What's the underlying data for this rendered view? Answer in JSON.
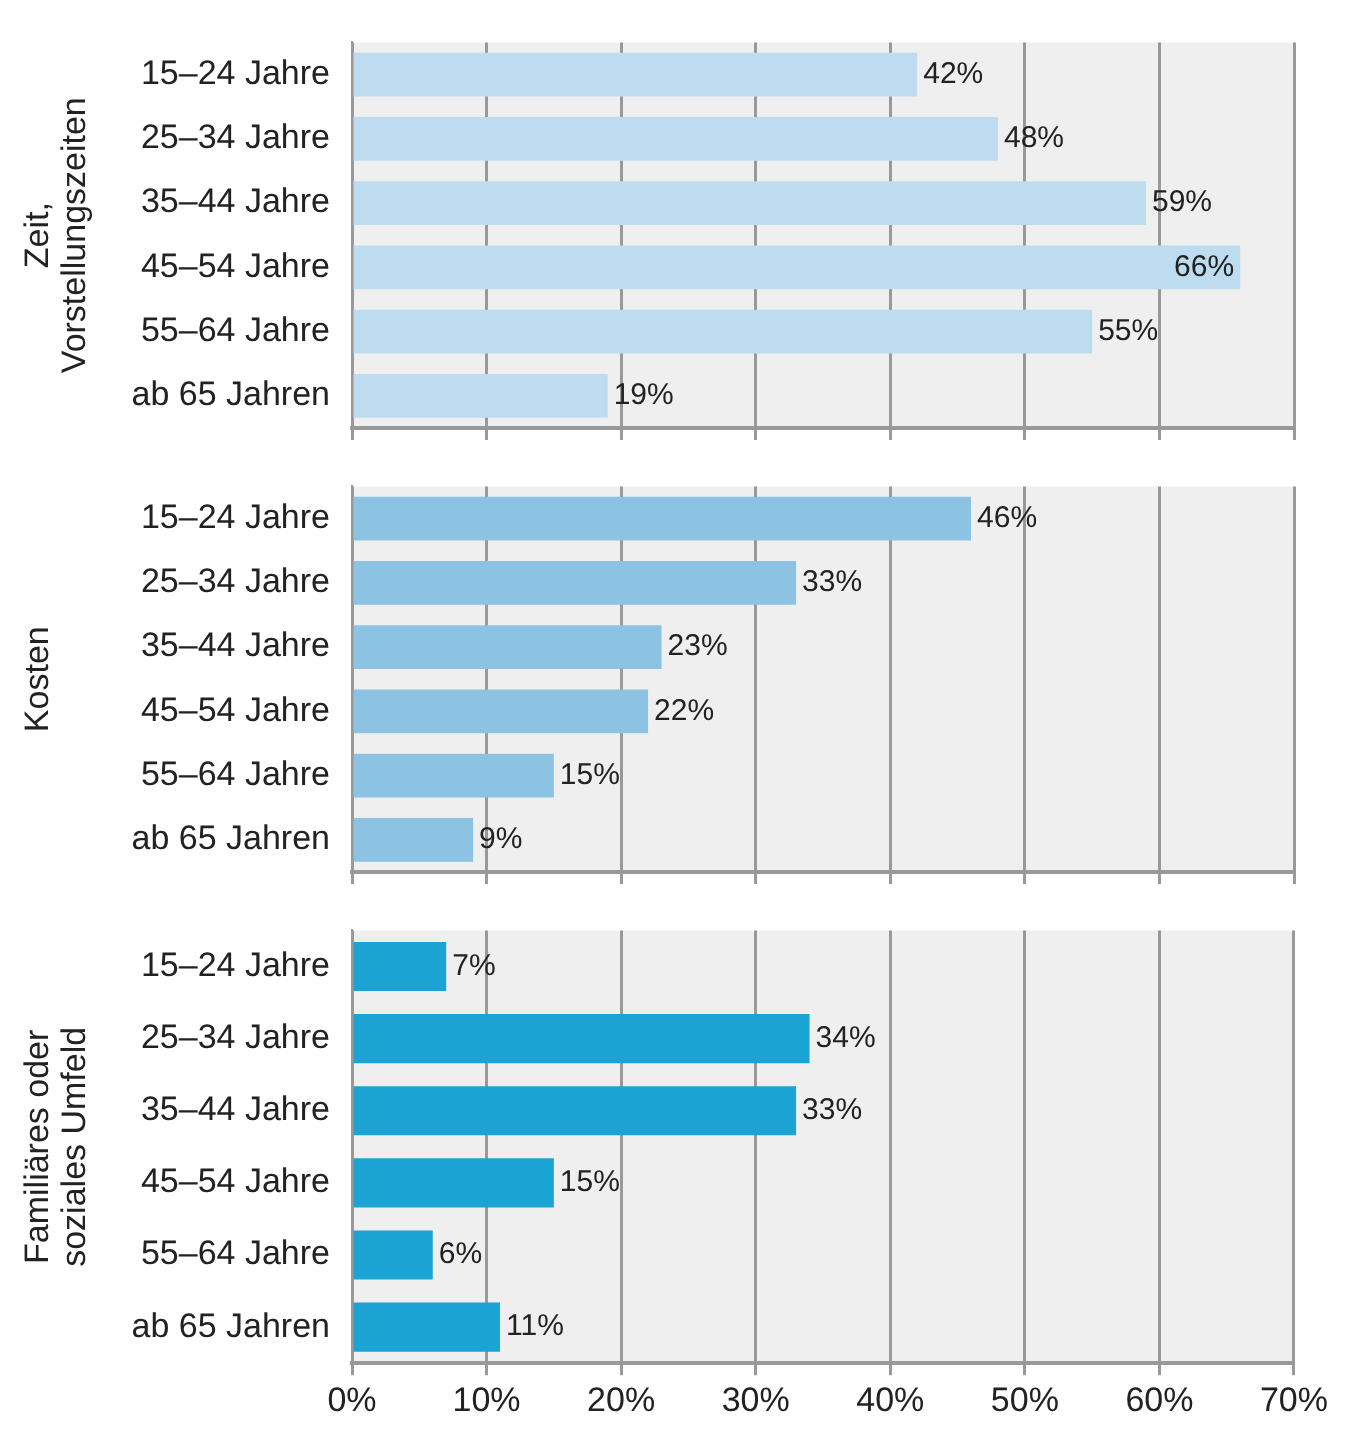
{
  "chart_data": [
    {
      "type": "bar",
      "orientation": "horizontal",
      "ylabel": "Zeit,\nVorstellungszeiten",
      "categories": [
        "15–24 Jahre",
        "25–34 Jahre",
        "35–44 Jahre",
        "45–54 Jahre",
        "55–64 Jahre",
        "ab 65 Jahren"
      ],
      "values": [
        42,
        48,
        59,
        66,
        55,
        19
      ],
      "value_labels": [
        "42%",
        "48%",
        "59%",
        "66%",
        "55%",
        "19%"
      ],
      "color": "#bddcf0",
      "xlim": [
        0,
        70
      ],
      "xticks": [
        {
          "value": 0,
          "label": null
        },
        {
          "value": 10,
          "label": null
        },
        {
          "value": 20,
          "label": null
        },
        {
          "value": 30,
          "label": null
        },
        {
          "value": 40,
          "label": null
        },
        {
          "value": 50,
          "label": null
        },
        {
          "value": 60,
          "label": null
        },
        {
          "value": 70,
          "label": null
        }
      ],
      "grid": "x",
      "tick_labels": "y"
    },
    {
      "type": "bar",
      "orientation": "horizontal",
      "ylabel": "Kosten",
      "categories": [
        "15–24 Jahre",
        "25–34 Jahre",
        "35–44 Jahre",
        "45–54 Jahre",
        "55–64 Jahre",
        "ab 65 Jahren"
      ],
      "values": [
        46,
        33,
        23,
        22,
        15,
        9
      ],
      "value_labels": [
        "46%",
        "33%",
        "23%",
        "22%",
        "15%",
        "9%"
      ],
      "color": "#8cc3e3",
      "xlim": [
        0,
        70
      ],
      "xticks": [
        {
          "value": 0,
          "label": null
        },
        {
          "value": 10,
          "label": null
        },
        {
          "value": 20,
          "label": null
        },
        {
          "value": 30,
          "label": null
        },
        {
          "value": 40,
          "label": null
        },
        {
          "value": 50,
          "label": null
        },
        {
          "value": 60,
          "label": null
        },
        {
          "value": 70,
          "label": null
        }
      ],
      "grid": "x",
      "tick_labels": "y"
    },
    {
      "type": "bar",
      "orientation": "horizontal",
      "ylabel": "Familiäres oder\nsoziales Umfeld",
      "categories": [
        "15–24 Jahre",
        "25–34 Jahre",
        "35–44 Jahre",
        "45–54 Jahre",
        "55–64 Jahre",
        "ab 65 Jahren"
      ],
      "values": [
        7,
        34,
        33,
        15,
        6,
        11
      ],
      "value_labels": [
        "7%",
        "34%",
        "33%",
        "15%",
        "6%",
        "11%"
      ],
      "color": "#1ba3d3",
      "xlim": [
        0,
        70
      ],
      "xticks": [
        {
          "value": 0,
          "label": "0%"
        },
        {
          "value": 10,
          "label": "10%"
        },
        {
          "value": 20,
          "label": "20%"
        },
        {
          "value": 30,
          "label": "30%"
        },
        {
          "value": 40,
          "label": "40%"
        },
        {
          "value": 50,
          "label": "50%"
        },
        {
          "value": 60,
          "label": "60%"
        },
        {
          "value": 70,
          "label": "70%"
        }
      ],
      "grid": "x"
    }
  ]
}
